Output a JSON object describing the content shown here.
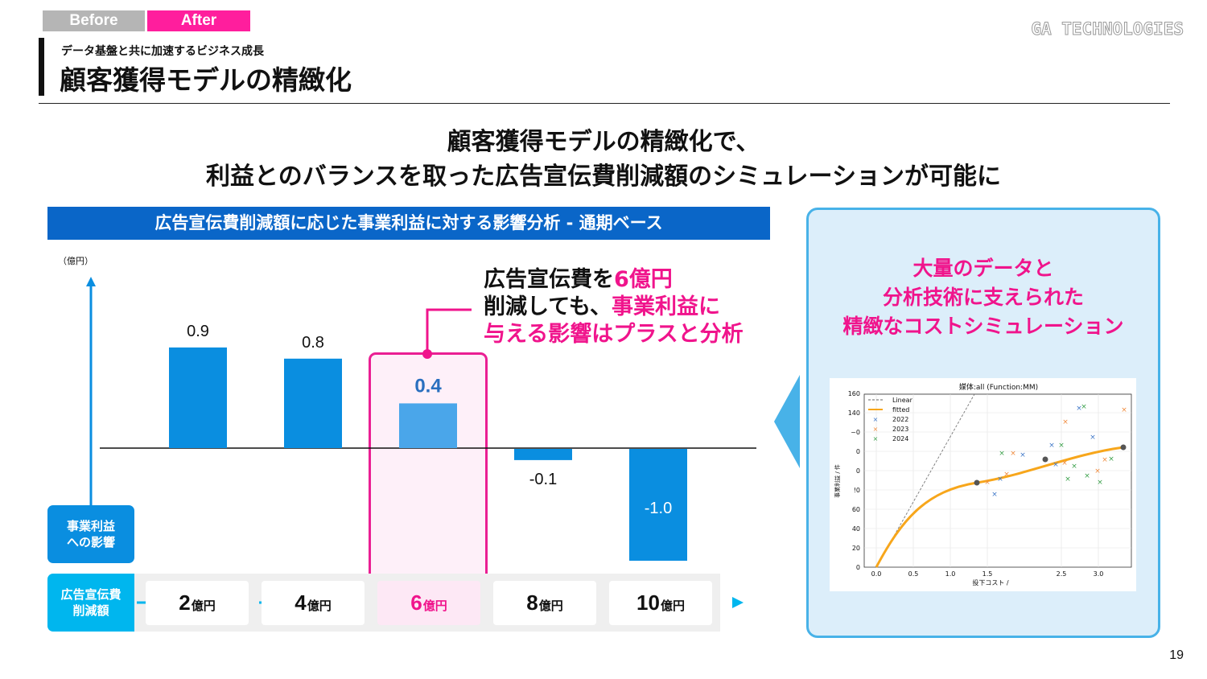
{
  "tabs": {
    "before": "Before",
    "after": "After"
  },
  "logo": "GA TECHNOLOGIES",
  "header": {
    "subtitle": "データ基盤と共に加速するビジネス成長",
    "title": "顧客獲得モデルの精緻化"
  },
  "headline": {
    "line1": "顧客獲得モデルの精緻化で、",
    "line2": "利益とのバランスを取った広告宣伝費削減額のシミュレーションが可能に"
  },
  "panel": {
    "header": "広告宣伝費削減額に応じた事業利益に対する影響分析 - 通期ベース",
    "unit": "（億円）",
    "y_label": [
      "事業利益",
      "への影響"
    ],
    "x_label": [
      "広告宣伝費",
      "削減額"
    ]
  },
  "callout": {
    "line1_a": "広告宣伝費を",
    "line1_b": "6億円",
    "line2_a": "削減しても、",
    "line2_b": "事業利益に",
    "line3": "与える影響はプラスと分析"
  },
  "chart_data": {
    "type": "bar",
    "categories": [
      "2",
      "4",
      "6",
      "8",
      "10"
    ],
    "category_unit": "億円",
    "values": [
      0.9,
      0.8,
      0.4,
      -0.1,
      -1.0
    ],
    "value_labels": [
      "0.9",
      "0.8",
      "0.4",
      "-0.1",
      "-1.0"
    ],
    "highlight_index": 2,
    "ylim": [
      -1.0,
      1.3
    ],
    "colors": {
      "bar": "#0a8ee0",
      "highlight_bar": "#4aa6ea",
      "highlight_label": "#2a6fbf",
      "axis": "#0a8ee0",
      "accent": "#f0148c"
    }
  },
  "side_panel": {
    "title": [
      "大量のデータと",
      "分析技術に支えられた",
      "精緻なコストシミュレーション"
    ],
    "mini_chart": {
      "title": "媒体:all (Function:MM)",
      "legend": [
        "Linear",
        "fitted",
        "2022",
        "2023",
        "2024"
      ],
      "y_ticks": [
        "0",
        "20",
        "40",
        "60",
        "80",
        "100",
        "120",
        "140",
        "160"
      ],
      "y_ticks_shown": [
        "0",
        "20",
        "40",
        "60",
        "!0",
        "0",
        "0",
        "~0",
        "140",
        "160"
      ],
      "x_ticks": [
        "0.0",
        "0.5",
        "1.0",
        "1.5",
        "2.5",
        "3.0"
      ],
      "xlabel": "投下コスト /",
      "ylabel": "事業利益 / 件",
      "colors": {
        "linear": "#666666",
        "fitted": "#f7a61b",
        "2022": "#3f78c8",
        "2023": "#f08a3c",
        "2024": "#3aa04a"
      }
    }
  },
  "page_number": "19"
}
